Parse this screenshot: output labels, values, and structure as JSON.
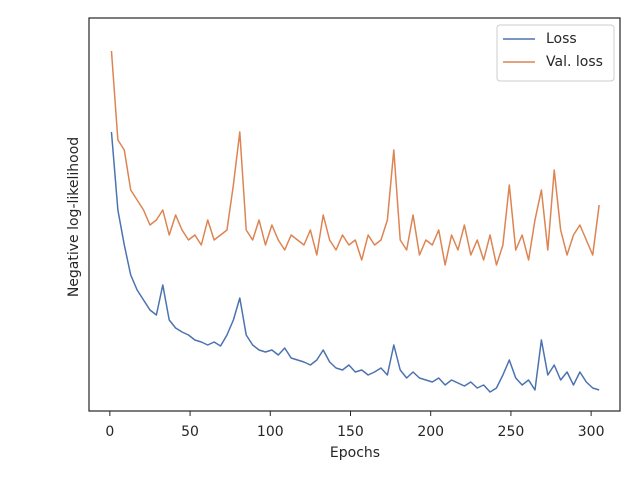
{
  "chart_data": {
    "type": "line",
    "xlabel": "Epochs",
    "ylabel": "Negative log-likelihood",
    "x": [
      1,
      5,
      9,
      13,
      17,
      21,
      25,
      29,
      33,
      37,
      41,
      45,
      49,
      53,
      57,
      61,
      65,
      69,
      73,
      77,
      81,
      85,
      89,
      93,
      97,
      101,
      105,
      109,
      113,
      117,
      121,
      125,
      129,
      133,
      137,
      141,
      145,
      149,
      153,
      157,
      161,
      165,
      169,
      173,
      177,
      181,
      185,
      189,
      193,
      197,
      201,
      205,
      209,
      213,
      217,
      221,
      225,
      229,
      233,
      237,
      241,
      245,
      249,
      253,
      257,
      261,
      265,
      269,
      273,
      277,
      281,
      285,
      289,
      293,
      297,
      301,
      305
    ],
    "series": [
      {
        "name": "Loss",
        "color": "#4c72b0",
        "values": [
          279,
          201,
          166,
          136,
          121,
          111,
          101,
          96,
          126,
          91,
          83,
          79,
          76,
          71,
          69,
          66,
          69,
          65,
          76,
          91,
          113,
          76,
          66,
          61,
          59,
          61,
          56,
          63,
          53,
          51,
          49,
          46,
          51,
          61,
          49,
          43,
          41,
          46,
          39,
          41,
          36,
          39,
          43,
          36,
          66,
          41,
          33,
          39,
          33,
          31,
          29,
          33,
          26,
          31,
          28,
          25,
          29,
          23,
          26,
          19,
          23,
          36,
          51,
          33,
          26,
          31,
          21,
          71,
          36,
          46,
          31,
          39,
          26,
          39,
          29,
          23,
          21
        ]
      },
      {
        "name": "Val. loss",
        "color": "#dd8452",
        "values": [
          360,
          271,
          261,
          221,
          211,
          201,
          186,
          191,
          201,
          176,
          196,
          181,
          171,
          176,
          166,
          191,
          171,
          176,
          181,
          226,
          279,
          181,
          171,
          191,
          166,
          186,
          171,
          161,
          176,
          171,
          166,
          181,
          156,
          196,
          171,
          161,
          176,
          166,
          171,
          151,
          176,
          166,
          171,
          191,
          261,
          171,
          161,
          196,
          156,
          171,
          166,
          181,
          146,
          176,
          161,
          186,
          156,
          171,
          151,
          176,
          146,
          166,
          226,
          161,
          176,
          151,
          191,
          221,
          161,
          241,
          181,
          156,
          176,
          186,
          171,
          156,
          206
        ]
      }
    ],
    "xlim": [
      -13,
      318
    ],
    "xticks": [
      0,
      50,
      100,
      150,
      200,
      250,
      300
    ],
    "ylim": [
      0,
      393
    ],
    "yticks": [],
    "legend": "upper right"
  }
}
